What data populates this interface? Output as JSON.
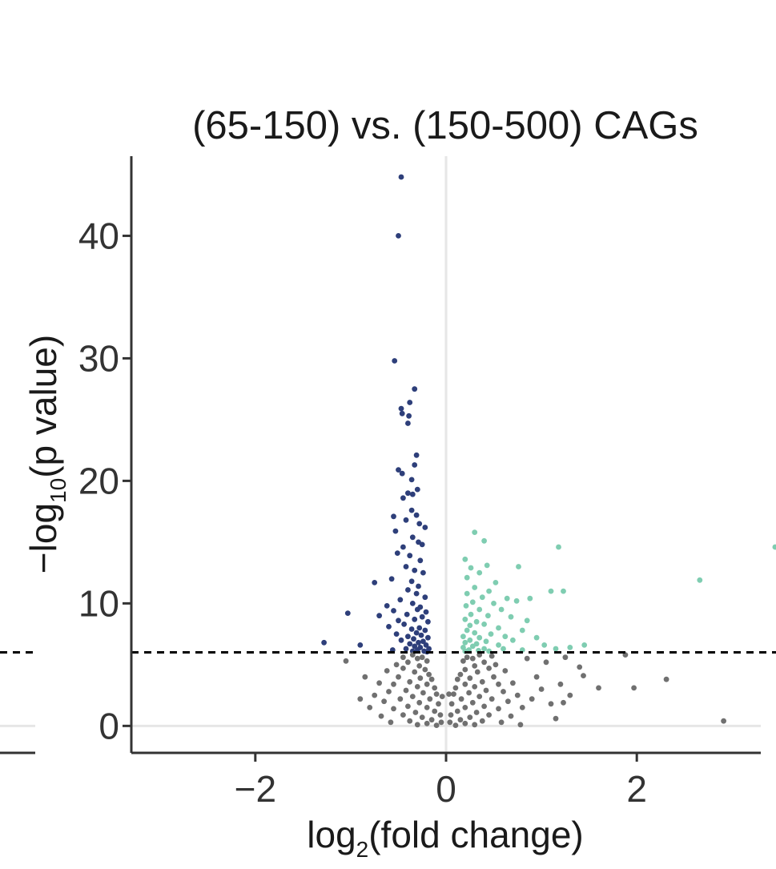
{
  "chart_data": {
    "type": "scatter",
    "title": "(65-150) vs. (150-500) CAGs",
    "xlabel": {
      "prefix": "log",
      "subscript": "2",
      "suffix": "(fold change)"
    },
    "ylabel": {
      "prefix": "−log",
      "subscript": "10",
      "suffix": "(p value)"
    },
    "xlim": [
      -3.3,
      3.3
    ],
    "ylim": [
      -2.2,
      46.5
    ],
    "xticks": [
      -2,
      0,
      2
    ],
    "xtick_labels": [
      "−2",
      "0",
      "2"
    ],
    "yticks": [
      0,
      10,
      20,
      30,
      40
    ],
    "ytick_labels": [
      "0",
      "10",
      "20",
      "30",
      "40"
    ],
    "grid": {
      "vertical_at": [
        0
      ],
      "horizontal_at": [
        0
      ]
    },
    "threshold_y": 6,
    "colors": {
      "down": "#2e3f7a",
      "up": "#7fcdb1",
      "ns": "#707070",
      "threshold": "#000000",
      "grid": "#e6e6e6",
      "axis": "#333333"
    },
    "series": [
      {
        "group": "down",
        "points": [
          [
            -0.47,
            44.8
          ],
          [
            -0.5,
            40.0
          ],
          [
            -0.54,
            29.8
          ],
          [
            -0.33,
            27.5
          ],
          [
            -0.47,
            25.9
          ],
          [
            -0.46,
            25.5
          ],
          [
            -0.38,
            26.4
          ],
          [
            -0.39,
            25.3
          ],
          [
            -0.4,
            24.7
          ],
          [
            -0.31,
            22.1
          ],
          [
            -0.33,
            21.3
          ],
          [
            -0.5,
            20.9
          ],
          [
            -0.46,
            20.6
          ],
          [
            -0.36,
            20.1
          ],
          [
            -0.4,
            19.0
          ],
          [
            -0.35,
            18.9
          ],
          [
            -0.3,
            19.3
          ],
          [
            -0.45,
            18.6
          ],
          [
            -0.55,
            17.1
          ],
          [
            -0.36,
            17.6
          ],
          [
            -0.31,
            17.2
          ],
          [
            -0.42,
            16.8
          ],
          [
            -0.28,
            16.5
          ],
          [
            -0.22,
            16.2
          ],
          [
            -0.53,
            15.9
          ],
          [
            -0.35,
            15.4
          ],
          [
            -0.29,
            15.0
          ],
          [
            -0.45,
            14.6
          ],
          [
            -0.25,
            14.8
          ],
          [
            -0.51,
            14.1
          ],
          [
            -0.38,
            13.9
          ],
          [
            -0.27,
            13.5
          ],
          [
            -0.42,
            13.0
          ],
          [
            -0.33,
            12.7
          ],
          [
            -0.24,
            12.5
          ],
          [
            -0.57,
            12.0
          ],
          [
            -0.75,
            11.7
          ],
          [
            -0.36,
            11.8
          ],
          [
            -0.29,
            11.4
          ],
          [
            -0.4,
            11.1
          ],
          [
            -0.31,
            10.8
          ],
          [
            -0.22,
            10.5
          ],
          [
            -0.48,
            10.3
          ],
          [
            -0.35,
            10.0
          ],
          [
            -0.62,
            9.8
          ],
          [
            -0.27,
            9.7
          ],
          [
            -0.55,
            9.4
          ],
          [
            -0.3,
            9.5
          ],
          [
            -0.21,
            9.3
          ],
          [
            -1.03,
            9.2
          ],
          [
            -0.41,
            9.1
          ],
          [
            -0.7,
            9.0
          ],
          [
            -0.25,
            8.9
          ],
          [
            -0.5,
            8.6
          ],
          [
            -0.33,
            8.7
          ],
          [
            -0.19,
            8.5
          ],
          [
            -0.44,
            8.3
          ],
          [
            -0.6,
            8.1
          ],
          [
            -0.28,
            8.0
          ],
          [
            -0.36,
            7.9
          ],
          [
            -0.22,
            7.8
          ],
          [
            -0.52,
            7.5
          ],
          [
            -0.31,
            7.6
          ],
          [
            -0.26,
            7.4
          ],
          [
            -0.4,
            7.3
          ],
          [
            -0.19,
            7.2
          ],
          [
            -0.47,
            7.0
          ],
          [
            -0.34,
            7.1
          ],
          [
            -0.24,
            6.9
          ],
          [
            -0.29,
            6.8
          ],
          [
            -1.28,
            6.8
          ],
          [
            -0.9,
            6.6
          ],
          [
            -0.38,
            6.7
          ],
          [
            -0.21,
            6.6
          ],
          [
            -0.33,
            6.5
          ],
          [
            -0.27,
            6.4
          ],
          [
            -0.18,
            6.3
          ],
          [
            -0.56,
            6.2
          ],
          [
            -0.42,
            6.3
          ],
          [
            -0.3,
            6.2
          ],
          [
            -0.23,
            6.1
          ],
          [
            -0.35,
            6.1
          ],
          [
            -0.2,
            6.05
          ]
        ]
      },
      {
        "group": "up",
        "points": [
          [
            0.3,
            15.8
          ],
          [
            0.4,
            15.1
          ],
          [
            1.18,
            14.6
          ],
          [
            3.45,
            14.6
          ],
          [
            0.2,
            13.6
          ],
          [
            0.43,
            13.1
          ],
          [
            0.76,
            13.0
          ],
          [
            0.26,
            12.9
          ],
          [
            0.35,
            12.5
          ],
          [
            0.22,
            12.1
          ],
          [
            2.66,
            11.9
          ],
          [
            0.52,
            11.7
          ],
          [
            0.3,
            11.3
          ],
          [
            0.45,
            11.0
          ],
          [
            0.22,
            10.8
          ],
          [
            1.1,
            11.0
          ],
          [
            1.23,
            11.0
          ],
          [
            0.38,
            10.5
          ],
          [
            0.64,
            10.4
          ],
          [
            0.88,
            10.4
          ],
          [
            0.28,
            10.1
          ],
          [
            0.5,
            10.0
          ],
          [
            0.74,
            10.2
          ],
          [
            0.21,
            9.8
          ],
          [
            0.35,
            9.5
          ],
          [
            0.58,
            9.5
          ],
          [
            0.26,
            9.1
          ],
          [
            0.44,
            9.0
          ],
          [
            0.2,
            8.7
          ],
          [
            0.32,
            8.5
          ],
          [
            0.68,
            8.9
          ],
          [
            0.85,
            8.6
          ],
          [
            0.25,
            8.2
          ],
          [
            0.4,
            8.3
          ],
          [
            0.55,
            8.0
          ],
          [
            0.22,
            7.8
          ],
          [
            0.3,
            7.6
          ],
          [
            0.47,
            7.5
          ],
          [
            0.8,
            7.8
          ],
          [
            0.18,
            7.3
          ],
          [
            0.35,
            7.2
          ],
          [
            0.62,
            7.3
          ],
          [
            0.25,
            7.0
          ],
          [
            0.42,
            6.9
          ],
          [
            0.7,
            7.0
          ],
          [
            0.95,
            7.2
          ],
          [
            0.2,
            6.8
          ],
          [
            0.32,
            6.7
          ],
          [
            0.55,
            6.6
          ],
          [
            1.03,
            6.6
          ],
          [
            0.28,
            6.5
          ],
          [
            0.18,
            6.4
          ],
          [
            0.4,
            6.3
          ],
          [
            1.3,
            6.4
          ],
          [
            0.24,
            6.2
          ],
          [
            0.6,
            6.3
          ],
          [
            0.34,
            6.15
          ],
          [
            0.2,
            6.1
          ],
          [
            0.8,
            6.2
          ],
          [
            1.45,
            6.6
          ],
          [
            1.15,
            6.3
          ],
          [
            0.45,
            6.1
          ]
        ]
      },
      {
        "group": "ns",
        "points": [
          [
            -0.35,
            5.8
          ],
          [
            -0.3,
            5.5
          ],
          [
            -0.25,
            5.6
          ],
          [
            -0.4,
            5.2
          ],
          [
            -0.2,
            5.3
          ],
          [
            -0.28,
            4.9
          ],
          [
            -0.45,
            4.7
          ],
          [
            -0.22,
            4.6
          ],
          [
            -0.33,
            4.4
          ],
          [
            -0.18,
            4.2
          ],
          [
            -0.5,
            4.0
          ],
          [
            -0.27,
            3.9
          ],
          [
            -0.15,
            3.8
          ],
          [
            -0.38,
            3.6
          ],
          [
            -0.55,
            3.4
          ],
          [
            -0.2,
            3.4
          ],
          [
            -0.3,
            3.2
          ],
          [
            -0.12,
            3.1
          ],
          [
            -0.42,
            2.9
          ],
          [
            -0.6,
            2.8
          ],
          [
            -0.24,
            2.7
          ],
          [
            -0.1,
            2.6
          ],
          [
            -0.35,
            2.4
          ],
          [
            -0.48,
            2.2
          ],
          [
            -0.17,
            2.2
          ],
          [
            -0.65,
            2.0
          ],
          [
            -0.28,
            1.9
          ],
          [
            -0.08,
            1.8
          ],
          [
            -0.4,
            1.6
          ],
          [
            -0.55,
            1.4
          ],
          [
            -0.2,
            1.5
          ],
          [
            -0.12,
            1.2
          ],
          [
            -0.32,
            1.1
          ],
          [
            -0.45,
            0.9
          ],
          [
            -0.06,
            0.9
          ],
          [
            -0.25,
            0.7
          ],
          [
            -0.15,
            0.5
          ],
          [
            -0.38,
            0.4
          ],
          [
            -0.05,
            0.3
          ],
          [
            -0.2,
            0.2
          ],
          [
            -0.3,
            0.1
          ],
          [
            -0.1,
            0.05
          ],
          [
            -0.7,
            3.5
          ],
          [
            -0.75,
            2.5
          ],
          [
            -0.8,
            1.5
          ],
          [
            -0.62,
            4.5
          ],
          [
            -0.52,
            5.0
          ],
          [
            -0.68,
            0.8
          ],
          [
            -0.58,
            0.3
          ],
          [
            -0.9,
            2.2
          ],
          [
            -1.05,
            5.3
          ],
          [
            -0.85,
            4.0
          ],
          [
            -0.45,
            5.6
          ],
          [
            -0.04,
            2.4
          ],
          [
            0.35,
            5.8
          ],
          [
            0.28,
            5.5
          ],
          [
            0.22,
            5.6
          ],
          [
            0.4,
            5.2
          ],
          [
            0.18,
            5.3
          ],
          [
            0.3,
            4.9
          ],
          [
            0.45,
            4.7
          ],
          [
            0.2,
            4.6
          ],
          [
            0.33,
            4.4
          ],
          [
            0.15,
            4.2
          ],
          [
            0.5,
            4.0
          ],
          [
            0.25,
            3.9
          ],
          [
            0.12,
            3.8
          ],
          [
            0.38,
            3.6
          ],
          [
            0.55,
            3.4
          ],
          [
            0.2,
            3.4
          ],
          [
            0.3,
            3.2
          ],
          [
            0.1,
            3.1
          ],
          [
            0.42,
            2.9
          ],
          [
            0.6,
            2.8
          ],
          [
            0.24,
            2.7
          ],
          [
            0.08,
            2.6
          ],
          [
            0.35,
            2.4
          ],
          [
            0.48,
            2.2
          ],
          [
            0.16,
            2.2
          ],
          [
            0.65,
            2.0
          ],
          [
            0.28,
            1.9
          ],
          [
            0.06,
            1.8
          ],
          [
            0.4,
            1.6
          ],
          [
            0.55,
            1.4
          ],
          [
            0.2,
            1.5
          ],
          [
            0.12,
            1.2
          ],
          [
            0.32,
            1.1
          ],
          [
            0.45,
            0.9
          ],
          [
            0.05,
            0.9
          ],
          [
            0.25,
            0.7
          ],
          [
            0.15,
            0.5
          ],
          [
            0.38,
            0.4
          ],
          [
            0.04,
            0.3
          ],
          [
            0.2,
            0.2
          ],
          [
            0.3,
            0.1
          ],
          [
            0.1,
            0.05
          ],
          [
            0.7,
            3.5
          ],
          [
            0.75,
            2.5
          ],
          [
            0.8,
            1.5
          ],
          [
            0.62,
            4.5
          ],
          [
            0.52,
            5.0
          ],
          [
            0.68,
            0.8
          ],
          [
            0.58,
            0.3
          ],
          [
            0.9,
            2.2
          ],
          [
            0.95,
            4.0
          ],
          [
            1.0,
            3.0
          ],
          [
            1.1,
            1.8
          ],
          [
            1.05,
            5.2
          ],
          [
            1.2,
            3.4
          ],
          [
            1.15,
            0.6
          ],
          [
            1.3,
            2.5
          ],
          [
            1.4,
            4.8
          ],
          [
            0.85,
            5.5
          ],
          [
            1.25,
            5.6
          ],
          [
            0.48,
            5.7
          ],
          [
            0.03,
            2.6
          ],
          [
            1.6,
            3.1
          ],
          [
            1.97,
            3.1
          ],
          [
            2.31,
            3.8
          ],
          [
            1.44,
            4.1
          ],
          [
            1.88,
            5.8
          ],
          [
            2.91,
            0.4
          ],
          [
            1.23,
            1.9
          ],
          [
            0.78,
            0.1
          ]
        ]
      }
    ]
  }
}
